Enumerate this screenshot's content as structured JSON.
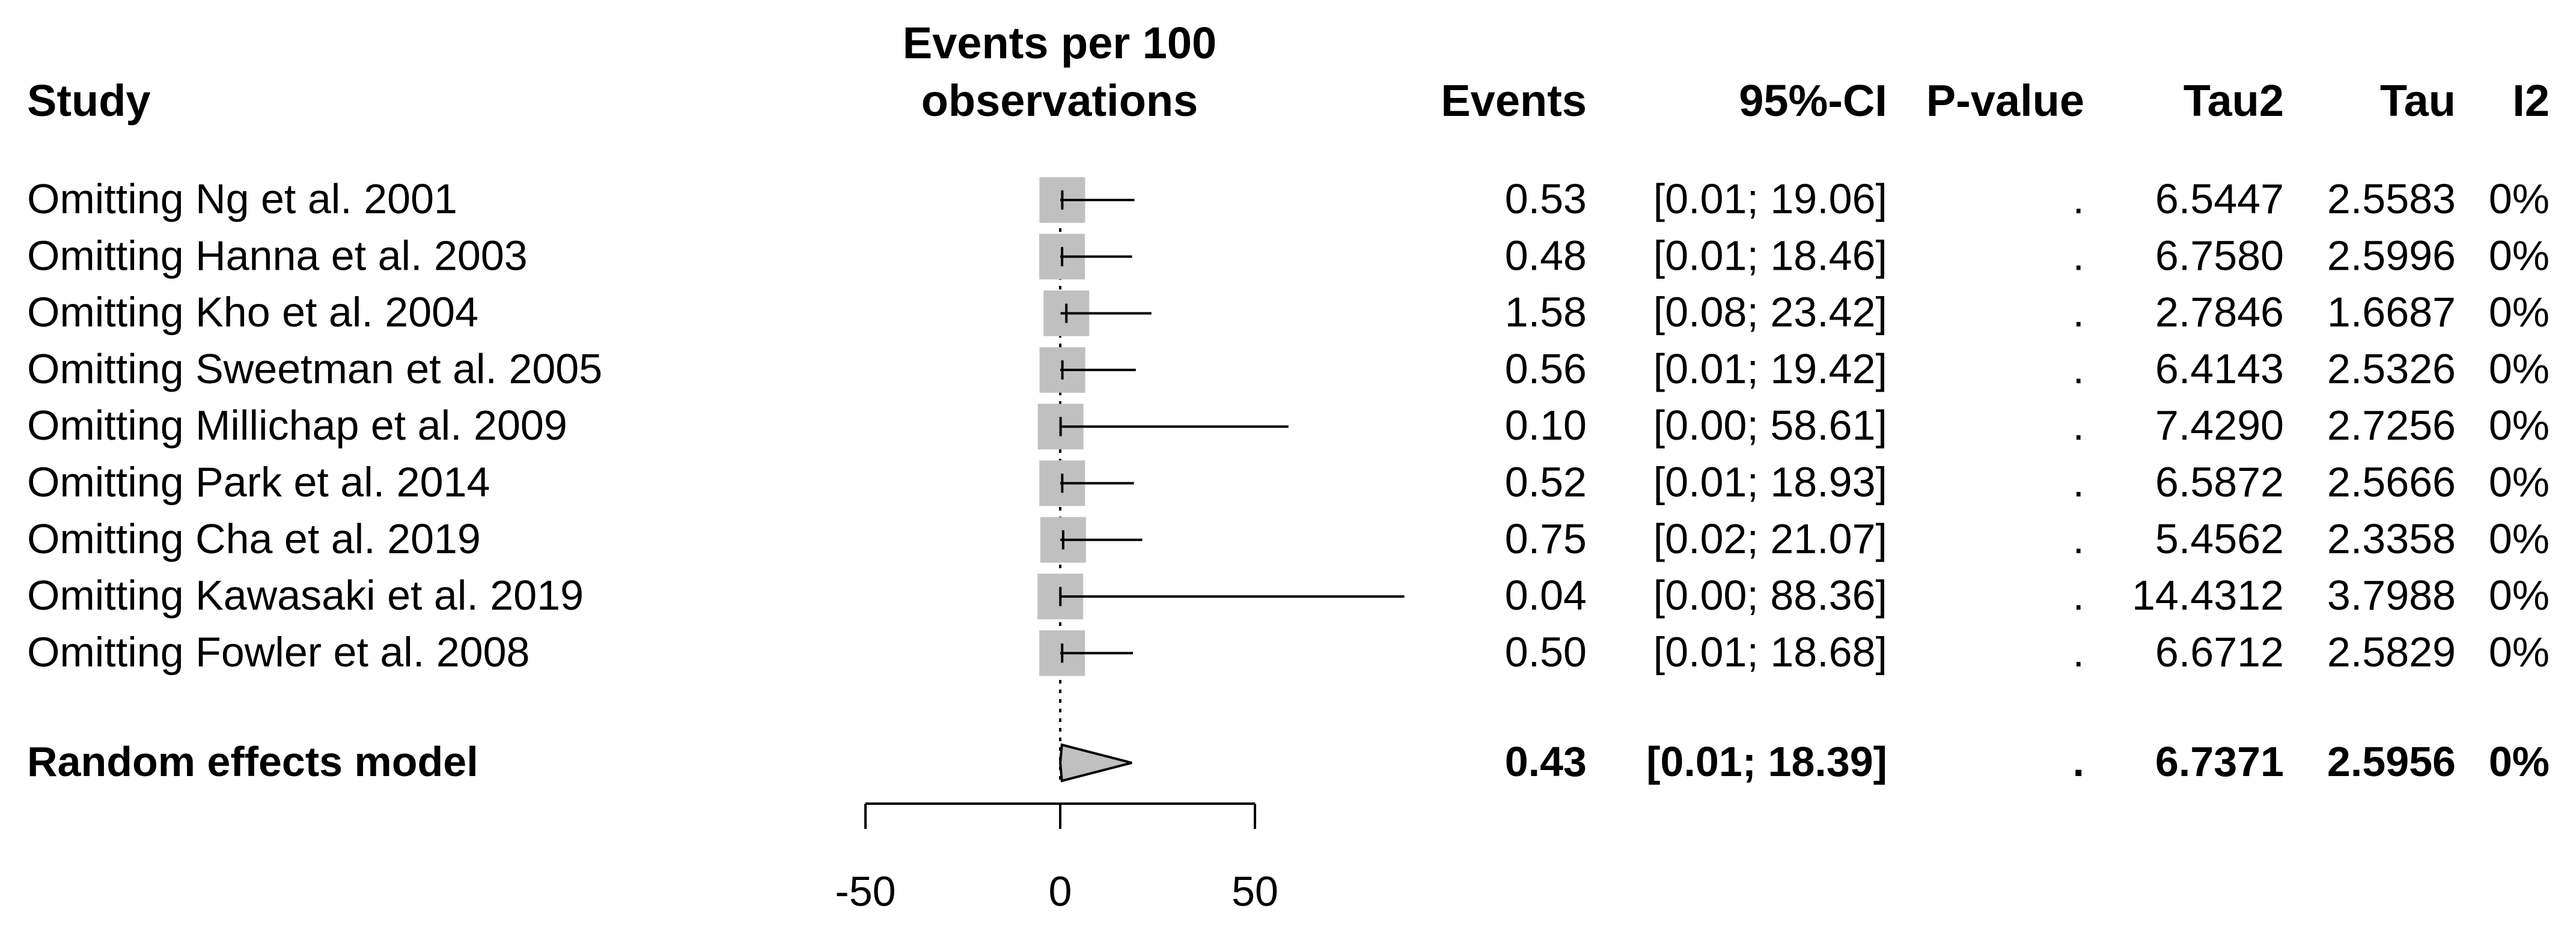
{
  "chart_data": {
    "type": "forest",
    "axis_title": [
      "Events per 100",
      "observations"
    ],
    "columns": [
      "Study",
      "Events",
      "95%-CI",
      "P-value",
      "Tau2",
      "Tau",
      "I2"
    ],
    "xlim": [
      -50,
      50
    ],
    "xticks": [
      -50,
      0,
      50
    ],
    "xtick_labels": [
      "-50",
      "0",
      "50"
    ],
    "reference_line": 0,
    "box_color": "#c0c0c0",
    "diamond_color": "#c0c0c0",
    "rows": [
      {
        "study": "Omitting Ng et al. 2001",
        "events": 0.53,
        "events_text": "0.53",
        "lower": 0.01,
        "upper": 19.06,
        "ci_text": "[0.01; 19.06]",
        "p": ".",
        "tau2": "6.5447",
        "tau": "2.5583",
        "i2": "0%"
      },
      {
        "study": "Omitting Hanna et al. 2003",
        "events": 0.48,
        "events_text": "0.48",
        "lower": 0.01,
        "upper": 18.46,
        "ci_text": "[0.01; 18.46]",
        "p": ".",
        "tau2": "6.7580",
        "tau": "2.5996",
        "i2": "0%"
      },
      {
        "study": "Omitting Kho et al. 2004",
        "events": 1.58,
        "events_text": "1.58",
        "lower": 0.08,
        "upper": 23.42,
        "ci_text": "[0.08; 23.42]",
        "p": ".",
        "tau2": "2.7846",
        "tau": "1.6687",
        "i2": "0%"
      },
      {
        "study": "Omitting Sweetman et al. 2005",
        "events": 0.56,
        "events_text": "0.56",
        "lower": 0.01,
        "upper": 19.42,
        "ci_text": "[0.01; 19.42]",
        "p": ".",
        "tau2": "6.4143",
        "tau": "2.5326",
        "i2": "0%"
      },
      {
        "study": "Omitting Millichap et al. 2009",
        "events": 0.1,
        "events_text": "0.10",
        "lower": 0.0,
        "upper": 58.61,
        "ci_text": "[0.00; 58.61]",
        "p": ".",
        "tau2": "7.4290",
        "tau": "2.7256",
        "i2": "0%"
      },
      {
        "study": "Omitting Park et al. 2014",
        "events": 0.52,
        "events_text": "0.52",
        "lower": 0.01,
        "upper": 18.93,
        "ci_text": "[0.01; 18.93]",
        "p": ".",
        "tau2": "6.5872",
        "tau": "2.5666",
        "i2": "0%"
      },
      {
        "study": "Omitting Cha et al. 2019",
        "events": 0.75,
        "events_text": "0.75",
        "lower": 0.02,
        "upper": 21.07,
        "ci_text": "[0.02; 21.07]",
        "p": ".",
        "tau2": "5.4562",
        "tau": "2.3358",
        "i2": "0%"
      },
      {
        "study": "Omitting Kawasaki et al. 2019",
        "events": 0.04,
        "events_text": "0.04",
        "lower": 0.0,
        "upper": 88.36,
        "ci_text": "[0.00; 88.36]",
        "p": ".",
        "tau2": "14.4312",
        "tau": "3.7988",
        "i2": "0%"
      },
      {
        "study": "Omitting Fowler et al. 2008",
        "events": 0.5,
        "events_text": "0.50",
        "lower": 0.01,
        "upper": 18.68,
        "ci_text": "[0.01; 18.68]",
        "p": ".",
        "tau2": "6.6712",
        "tau": "2.5829",
        "i2": "0%"
      }
    ],
    "summary": {
      "label": "Random effects model",
      "events": 0.43,
      "events_text": "0.43",
      "lower": 0.01,
      "upper": 18.39,
      "ci_text": "[0.01; 18.39]",
      "p": ".",
      "tau2": "6.7371",
      "tau": "2.5956",
      "i2": "0%"
    }
  }
}
